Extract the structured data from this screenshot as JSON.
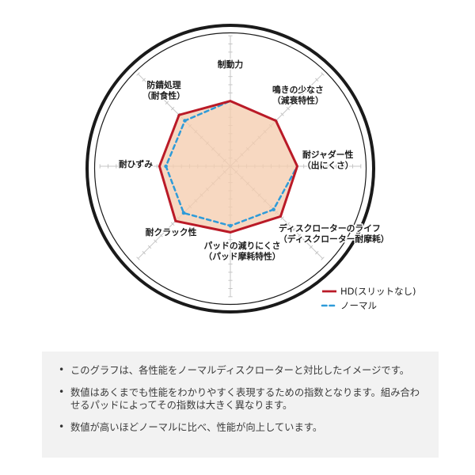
{
  "chart_data": {
    "type": "radar",
    "axes": [
      {
        "label": "制動力",
        "sublabel": ""
      },
      {
        "label": "鳴きの少なさ",
        "sublabel": "（減衰特性）"
      },
      {
        "label": "耐ジャダー性",
        "sublabel": "（出にくさ）"
      },
      {
        "label": "ディスクローターのライフ",
        "sublabel": "（ディスクローター耐摩耗）"
      },
      {
        "label": "パッドの減りにくさ",
        "sublabel": "（パッド摩耗特性）"
      },
      {
        "label": "耐クラック性",
        "sublabel": ""
      },
      {
        "label": "耐ひずみ",
        "sublabel": ""
      },
      {
        "label": "防錆処理",
        "sublabel": "（耐食性）"
      }
    ],
    "scale": {
      "min": 0,
      "max": 16,
      "tick_step": 1,
      "grid": "spoke-ticks-only"
    },
    "legend_position": "bottom-right",
    "series": [
      {
        "name": "HD(スリットなし)",
        "line": "solid",
        "color": "#ba1a27",
        "filled": true,
        "values": [
          8.0,
          7.9,
          8.2,
          8.7,
          8.1,
          9.5,
          8.7,
          8.9
        ]
      },
      {
        "name": "ノーマル",
        "line": "dashed",
        "color": "#2e9bd9",
        "filled": false,
        "values": [
          8.0,
          7.9,
          8.2,
          7.5,
          7.3,
          8.1,
          7.9,
          7.9
        ]
      }
    ]
  },
  "notes": {
    "items": [
      "このグラフは、各性能をノーマルディスクローターと対比したイメージです。",
      "数値はあくまでも性能をわかりやすく表現するための指数となります。組み合わせるパッドによってその指数は大きく異なります。",
      "数値が高いほどノーマルに比べ、性能が向上しています。"
    ]
  },
  "colors": {
    "ring": "#1a1a1a",
    "axis": "#c5c5c5",
    "fill": "#f5cdb0",
    "hd_red": "#ba1a27",
    "normal_blue": "#2e9bd9",
    "notes_bg": "#f2f2f2",
    "notes_text": "#3a3a3a"
  }
}
